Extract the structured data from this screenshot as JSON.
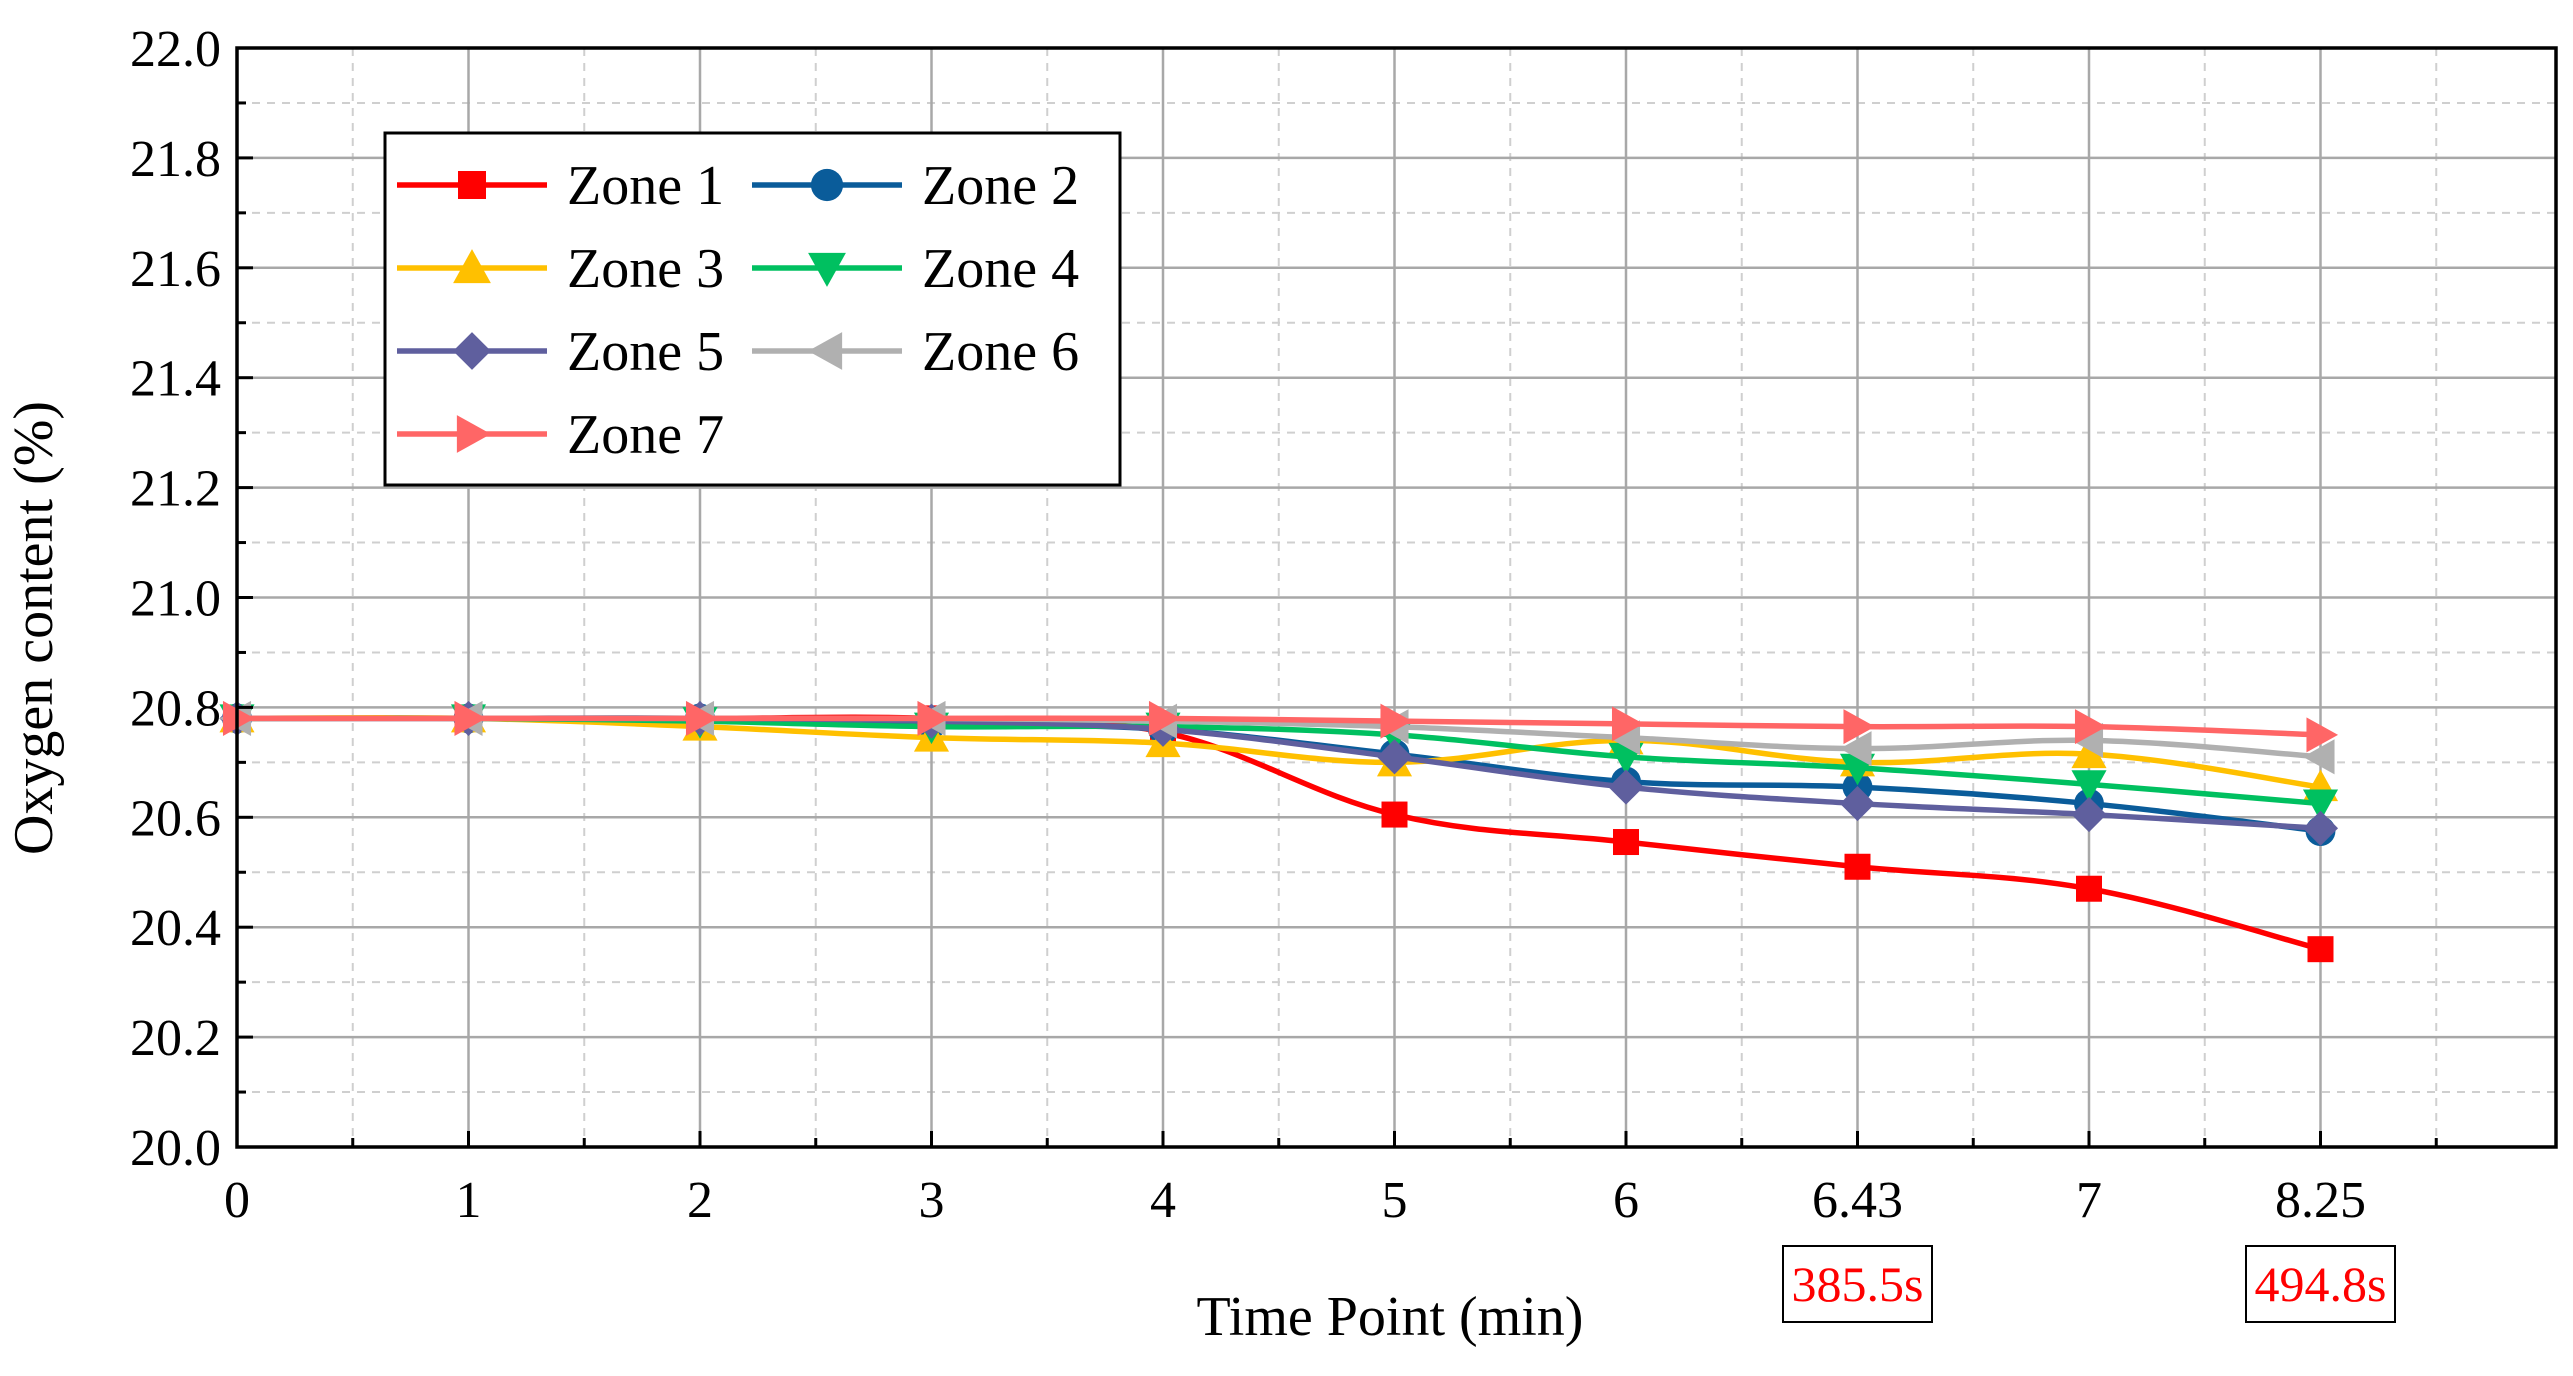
{
  "chart_data": {
    "type": "line",
    "title": "",
    "xlabel": "Time Point (min)",
    "ylabel": "Oxygen content (%)",
    "categories": [
      "0",
      "1",
      "2",
      "3",
      "4",
      "5",
      "6",
      "6.43",
      "7",
      "8.25"
    ],
    "ylim": [
      20.0,
      22.0
    ],
    "yticks": [
      "20.0",
      "20.2",
      "20.4",
      "20.6",
      "20.8",
      "21.0",
      "21.2",
      "21.4",
      "21.6",
      "21.8",
      "22.0"
    ],
    "grid": true,
    "legend_position": "top-left",
    "series": [
      {
        "name": "Zone 1",
        "color": "#ff0000",
        "marker": "square",
        "values": [
          20.78,
          20.78,
          20.78,
          20.78,
          20.755,
          20.605,
          20.555,
          20.51,
          20.47,
          20.36
        ]
      },
      {
        "name": "Zone 2",
        "color": "#0a5c9a",
        "marker": "circle",
        "values": [
          20.78,
          20.78,
          20.78,
          20.77,
          20.76,
          20.715,
          20.665,
          20.655,
          20.625,
          20.575
        ]
      },
      {
        "name": "Zone 3",
        "color": "#ffc000",
        "marker": "triangle-up",
        "values": [
          20.78,
          20.78,
          20.765,
          20.745,
          20.735,
          20.7,
          20.74,
          20.7,
          20.715,
          20.655
        ]
      },
      {
        "name": "Zone 4",
        "color": "#00c060",
        "marker": "triangle-down",
        "values": [
          20.78,
          20.78,
          20.775,
          20.765,
          20.765,
          20.75,
          20.71,
          20.69,
          20.66,
          20.625
        ]
      },
      {
        "name": "Zone 5",
        "color": "#5f5f9e",
        "marker": "diamond",
        "values": [
          20.78,
          20.78,
          20.78,
          20.775,
          20.76,
          20.71,
          20.655,
          20.625,
          20.605,
          20.58
        ]
      },
      {
        "name": "Zone 6",
        "color": "#b0b0b0",
        "marker": "triangle-left",
        "values": [
          20.78,
          20.78,
          20.78,
          20.78,
          20.775,
          20.765,
          20.745,
          20.725,
          20.74,
          20.71
        ]
      },
      {
        "name": "Zone 7",
        "color": "#ff6666",
        "marker": "triangle-right",
        "values": [
          20.78,
          20.78,
          20.78,
          20.78,
          20.78,
          20.775,
          20.77,
          20.765,
          20.765,
          20.75
        ]
      }
    ],
    "annotations": [
      {
        "text": "385.5s",
        "color": "#ff0000",
        "category": "6.43"
      },
      {
        "text": "494.8s",
        "color": "#ff0000",
        "category": "8.25"
      }
    ]
  }
}
